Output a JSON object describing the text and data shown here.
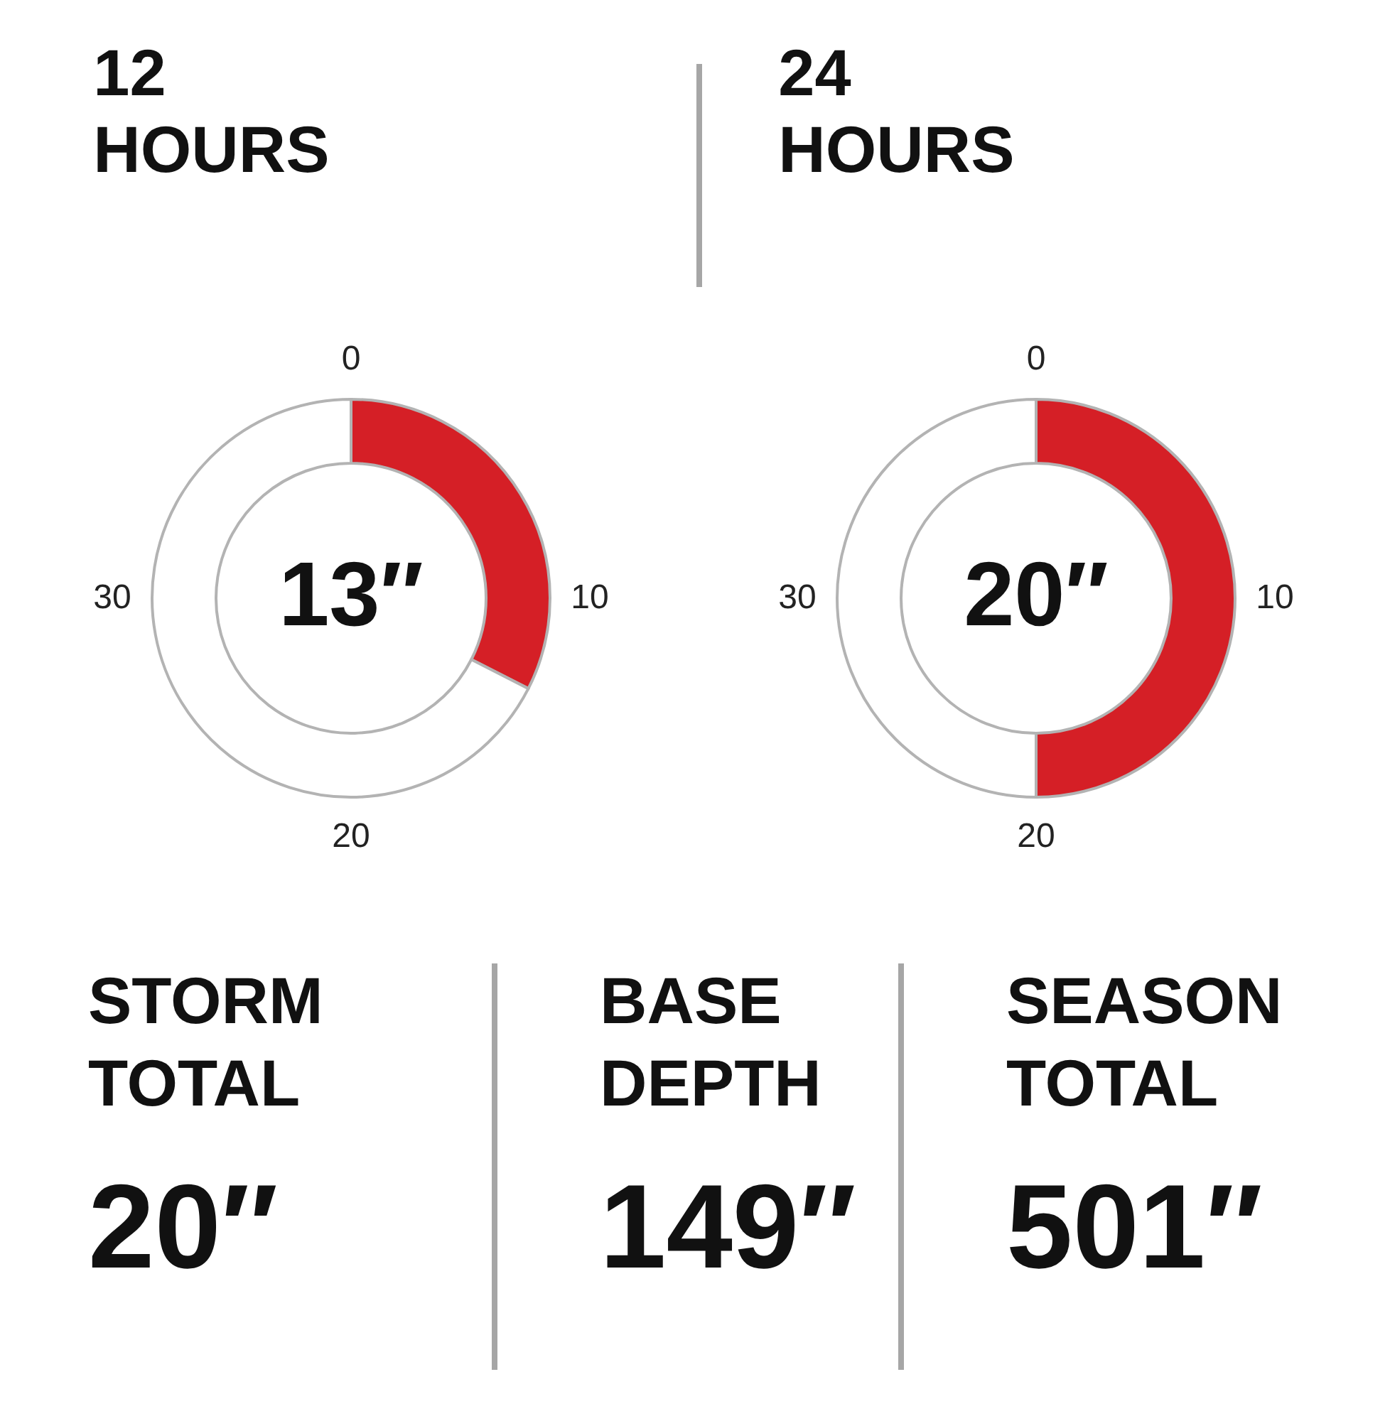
{
  "chart_data": [
    {
      "type": "donut",
      "title": "12 HOURS",
      "categories": [
        null,
        null
      ],
      "values": [
        13,
        27
      ],
      "colors": [
        "#d51f26",
        "#ffffff"
      ],
      "value_labels": [
        "13″",
        null
      ],
      "annotations": [
        "0",
        "10",
        "20",
        "30"
      ]
    },
    {
      "type": "donut",
      "title": "24 HOURS",
      "categories": [
        null,
        null
      ],
      "values": [
        20,
        20
      ],
      "colors": [
        "#d51f26",
        "#ffffff"
      ],
      "value_labels": [
        "20″",
        null
      ],
      "annotations": [
        "0",
        "10",
        "20",
        "30"
      ]
    },
    {
      "type": "other",
      "annotations": [
        "STORM TOTAL",
        "20″",
        "BASE DEPTH",
        "149″",
        "SEASON TOTAL",
        "501″"
      ]
    }
  ]
}
